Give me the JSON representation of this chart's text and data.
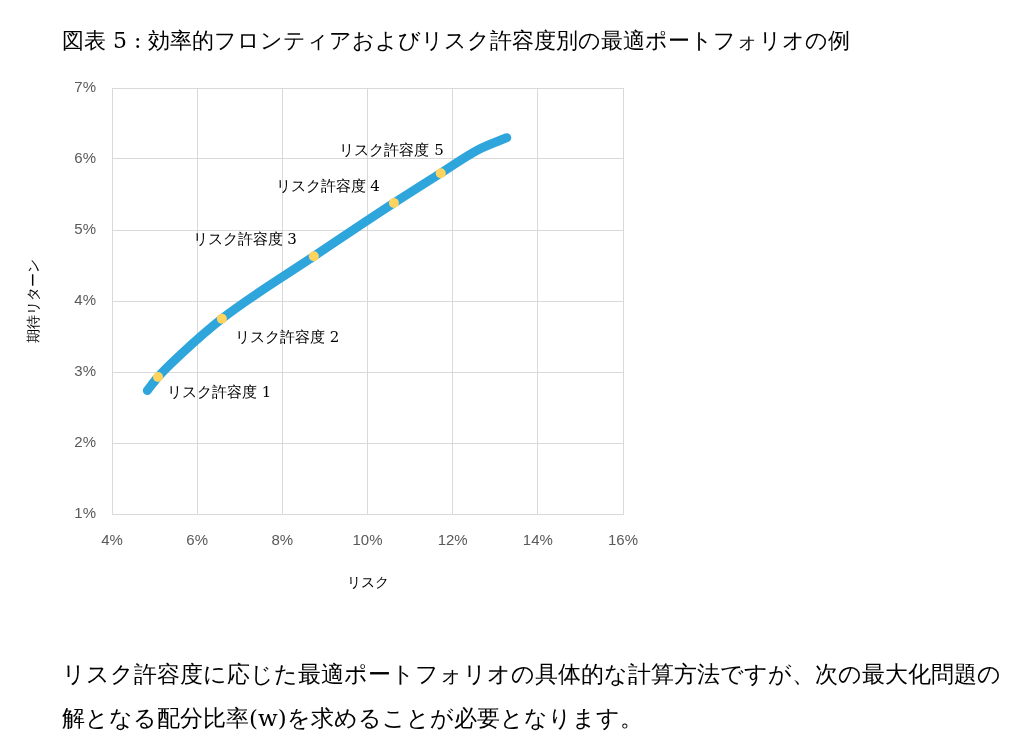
{
  "chart_data": {
    "type": "line",
    "title": "図表 5 : 効率的フロンティアおよびリスク許容度別の最適ポートフォリオの例",
    "xlabel": "リスク",
    "ylabel": "期待リターン",
    "series": [
      {
        "type": "line",
        "color": "#2ea6dc",
        "marker": "none",
        "x": [
          4.83,
          5.08,
          5.6,
          6.58,
          8.74,
          10.62,
          11.72,
          12.6,
          13.27
        ],
        "values": [
          2.74,
          2.93,
          3.24,
          3.75,
          4.63,
          5.38,
          5.8,
          6.13,
          6.3
        ]
      },
      {
        "type": "scatter",
        "color": "#ffd45e",
        "marker": "circle",
        "x": [
          5.08,
          6.58,
          8.74,
          10.62,
          11.72
        ],
        "values": [
          2.93,
          3.75,
          4.63,
          5.38,
          5.8
        ]
      }
    ],
    "xlim": [
      4,
      16
    ],
    "xticks": [
      {
        "value": 4,
        "label": "4%"
      },
      {
        "value": 6,
        "label": "6%"
      },
      {
        "value": 8,
        "label": "8%"
      },
      {
        "value": 10,
        "label": "10%"
      },
      {
        "value": 12,
        "label": "12%"
      },
      {
        "value": 14,
        "label": "14%"
      },
      {
        "value": 16,
        "label": "16%"
      }
    ],
    "ylim": [
      1,
      7
    ],
    "yticks": [
      {
        "value": 1,
        "label": "1%"
      },
      {
        "value": 2,
        "label": "2%"
      },
      {
        "value": 3,
        "label": "3%"
      },
      {
        "value": 4,
        "label": "4%"
      },
      {
        "value": 5,
        "label": "5%"
      },
      {
        "value": 6,
        "label": "6%"
      },
      {
        "value": 7,
        "label": "7%"
      }
    ],
    "grid": true,
    "annotations": [
      {
        "text": "リスク許容度 1",
        "x": 5.08,
        "y": 2.93
      },
      {
        "text": "リスク許容度 2",
        "x": 6.58,
        "y": 3.75
      },
      {
        "text": "リスク許容度 3",
        "x": 8.74,
        "y": 4.63
      },
      {
        "text": "リスク許容度 4",
        "x": 10.62,
        "y": 5.38
      },
      {
        "text": "リスク許容度 5",
        "x": 11.72,
        "y": 5.8
      },
      "リスク許容度に応じた最適ポートフォリオの具体的な計算方法ですが、次の最大化問題の解となる配分比率(w)を求めることが必要となります。"
    ]
  }
}
